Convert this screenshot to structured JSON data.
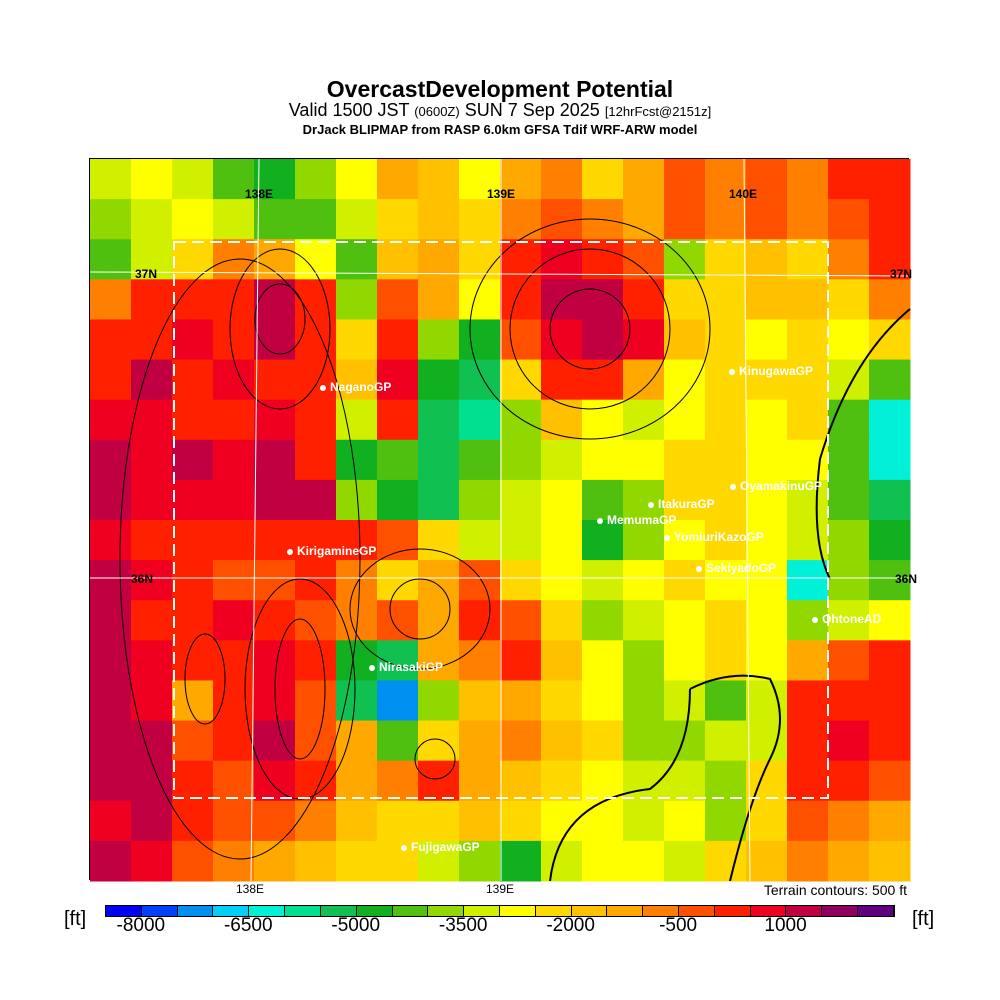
{
  "header": {
    "title": "OvercastDevelopment Potential",
    "subtitle_a": "Valid 1500 JST ",
    "subtitle_b": "(0600Z)",
    "subtitle_c": " SUN 7 Sep 2025 ",
    "subtitle_d": "[12hrFcst@2151z]",
    "model": "DrJack BLIPMAP from RASP 6.0km GFSA Tdif WRF-ARW model"
  },
  "axes": {
    "top_lon": [
      "138E",
      "139E",
      "140E"
    ],
    "lat_left": [
      "37N",
      "36N"
    ],
    "lat_right": [
      "37N",
      "36N"
    ],
    "bottom_lon": [
      "138E",
      "139E"
    ],
    "terrain_note": "Terrain contours: 500 ft"
  },
  "stations": [
    "NaganoGP",
    "KirigamineGP",
    "NirasakiGP",
    "FujigawaGP",
    "KinugawaGP",
    "OyamakinuGP",
    "ItakuraGP",
    "MemumaGP",
    "YomiuriKazoGP",
    "SekiyadoGP",
    "OhtoneAD"
  ],
  "colorbar": {
    "unit_left": "[ft]",
    "unit_right": "[ft]",
    "labels": [
      "-8000",
      "-6500",
      "-5000",
      "-3500",
      "-2000",
      "-500",
      "1000"
    ],
    "colors": [
      "#0000f0",
      "#0040f8",
      "#0090f0",
      "#00d0f8",
      "#00f0d8",
      "#00e090",
      "#10c050",
      "#10b020",
      "#50c010",
      "#90d800",
      "#d0f000",
      "#ffff00",
      "#ffd800",
      "#ffc000",
      "#ffa800",
      "#ff8000",
      "#ff5000",
      "#ff2000",
      "#f00020",
      "#c00040",
      "#900060",
      "#600080"
    ]
  },
  "chart_data": {
    "type": "heatmap",
    "title": "OvercastDevelopment Potential",
    "units": "ft",
    "level_min": -8500,
    "level_step": 500,
    "field_levels": [
      [
        10,
        11,
        10,
        8,
        7,
        9,
        11,
        14,
        13,
        11,
        14,
        15,
        12,
        14,
        16,
        15,
        16,
        15,
        17,
        17
      ],
      [
        9,
        10,
        11,
        10,
        8,
        8,
        10,
        12,
        13,
        12,
        15,
        16,
        15,
        14,
        16,
        15,
        16,
        15,
        16,
        17
      ],
      [
        8,
        10,
        12,
        15,
        14,
        11,
        8,
        13,
        14,
        12,
        17,
        18,
        17,
        16,
        9,
        12,
        13,
        12,
        15,
        17
      ],
      [
        15,
        17,
        17,
        17,
        19,
        17,
        9,
        16,
        14,
        11,
        17,
        19,
        19,
        17,
        12,
        12,
        13,
        13,
        12,
        15
      ],
      [
        17,
        17,
        18,
        17,
        19,
        17,
        12,
        17,
        9,
        7,
        16,
        18,
        19,
        18,
        13,
        12,
        11,
        12,
        11,
        12
      ],
      [
        17,
        19,
        17,
        18,
        17,
        17,
        13,
        18,
        7,
        6,
        12,
        17,
        17,
        14,
        11,
        12,
        12,
        12,
        10,
        8
      ],
      [
        18,
        18,
        17,
        17,
        18,
        17,
        10,
        17,
        6,
        5,
        9,
        13,
        11,
        10,
        11,
        12,
        11,
        12,
        8,
        4
      ],
      [
        19,
        18,
        19,
        18,
        19,
        17,
        7,
        8,
        6,
        8,
        9,
        10,
        11,
        11,
        12,
        12,
        11,
        11,
        8,
        4
      ],
      [
        19,
        18,
        18,
        18,
        19,
        19,
        9,
        7,
        6,
        9,
        10,
        11,
        8,
        9,
        12,
        12,
        11,
        10,
        8,
        6
      ],
      [
        18,
        17,
        17,
        17,
        17,
        17,
        17,
        16,
        12,
        10,
        10,
        11,
        7,
        9,
        11,
        12,
        11,
        10,
        9,
        7
      ],
      [
        19,
        18,
        17,
        16,
        16,
        17,
        15,
        12,
        14,
        16,
        12,
        11,
        10,
        11,
        12,
        11,
        11,
        4,
        9,
        8
      ],
      [
        19,
        17,
        17,
        18,
        17,
        16,
        15,
        16,
        14,
        17,
        16,
        12,
        9,
        10,
        11,
        12,
        11,
        9,
        10,
        11
      ],
      [
        19,
        18,
        17,
        17,
        18,
        17,
        7,
        6,
        14,
        15,
        17,
        13,
        11,
        9,
        11,
        12,
        11,
        14,
        16,
        17
      ],
      [
        19,
        18,
        14,
        17,
        18,
        16,
        6,
        2,
        9,
        13,
        14,
        12,
        11,
        9,
        10,
        8,
        10,
        17,
        17,
        17
      ],
      [
        19,
        19,
        16,
        17,
        19,
        16,
        14,
        8,
        12,
        14,
        15,
        13,
        12,
        9,
        9,
        10,
        10,
        17,
        18,
        17
      ],
      [
        19,
        19,
        17,
        16,
        18,
        17,
        14,
        15,
        17,
        14,
        13,
        12,
        11,
        10,
        10,
        9,
        12,
        17,
        17,
        16
      ],
      [
        18,
        19,
        17,
        16,
        16,
        15,
        13,
        12,
        12,
        13,
        12,
        11,
        11,
        10,
        11,
        9,
        12,
        16,
        15,
        14
      ],
      [
        19,
        18,
        16,
        15,
        14,
        13,
        12,
        12,
        10,
        9,
        7,
        10,
        11,
        11,
        10,
        12,
        13,
        15,
        14,
        13
      ]
    ]
  }
}
